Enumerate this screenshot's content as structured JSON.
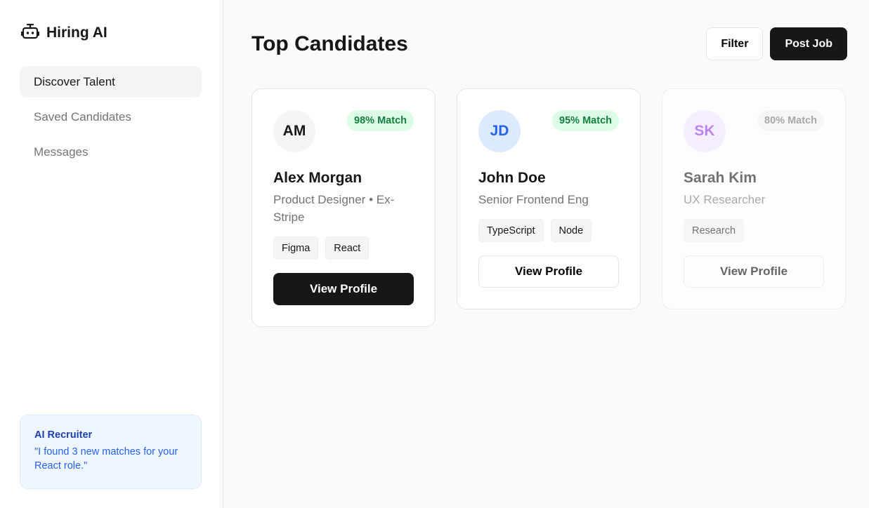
{
  "brand": {
    "title": "Hiring AI",
    "icon": "robot-icon"
  },
  "nav": [
    {
      "label": "Discover Talent",
      "active": true
    },
    {
      "label": "Saved Candidates"
    },
    {
      "label": "Messages"
    }
  ],
  "ai_box": {
    "title": "AI Recruiter",
    "text": "\"I found 3 new matches for your React role.\""
  },
  "header": {
    "title": "Top Candidates",
    "filter": "Filter",
    "post_job": "Post Job"
  },
  "candidates": [
    {
      "initials": "AM",
      "match": "98% Match",
      "name": "Alex Morgan",
      "role": "Product Designer • Ex-Stripe",
      "tags": [
        "Figma",
        "React"
      ],
      "cta": "View Profile",
      "avatar_bg": "#f5f5f5",
      "avatar_fg": "#171717",
      "badge_bg": "#dcfce7",
      "badge_fg": "#15803d"
    },
    {
      "initials": "JD",
      "match": "95% Match",
      "name": "John Doe",
      "role": "Senior Frontend Eng",
      "tags": [
        "TypeScript",
        "Node"
      ],
      "cta": "View Profile",
      "avatar_bg": "#dbeafe",
      "avatar_fg": "#2563eb",
      "badge_bg": "#dcfce7",
      "badge_fg": "#15803d"
    },
    {
      "initials": "SK",
      "match": "80% Match",
      "name": "Sarah Kim",
      "role": "UX Researcher",
      "tags": [
        "Research"
      ],
      "cta": "View Profile",
      "avatar_bg": "#f3e8ff",
      "avatar_fg": "#9333ea",
      "badge_bg": "#f5f5f5",
      "badge_fg": "#737373"
    }
  ]
}
